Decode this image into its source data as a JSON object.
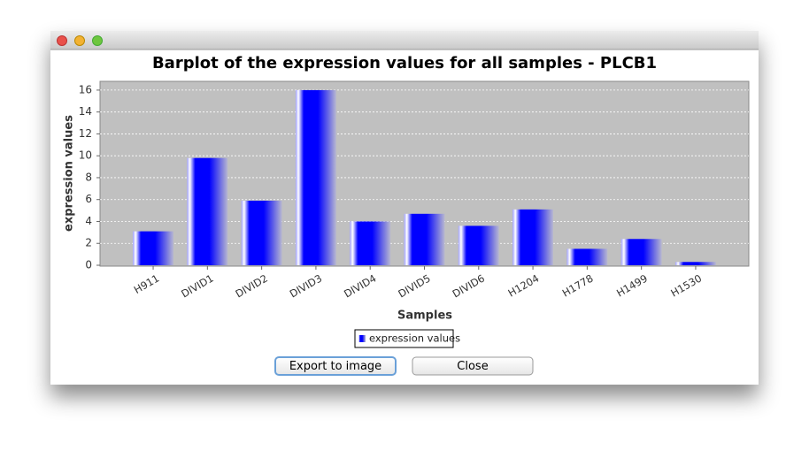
{
  "chart_data": {
    "type": "bar",
    "title": "Barplot of the expression values for all samples - PLCB1",
    "x_label": "Samples",
    "y_label": "expression values",
    "categories": [
      "H911",
      "DIVID1",
      "DIVID2",
      "DIVID3",
      "DIVID4",
      "DIVID5",
      "DIVID6",
      "H1204",
      "H1778",
      "H1499",
      "H1530"
    ],
    "series": [
      {
        "name": "expression values",
        "color": "#0000ff",
        "values": [
          3.1,
          9.8,
          5.9,
          16.0,
          4.0,
          4.7,
          3.6,
          5.1,
          1.5,
          2.4,
          0.3
        ]
      }
    ],
    "ylim": [
      0,
      16.8
    ],
    "yticks": [
      0,
      2,
      4,
      6,
      8,
      10,
      12,
      14,
      16
    ],
    "grid": true
  },
  "buttons": [
    "Export to image",
    "Close"
  ]
}
